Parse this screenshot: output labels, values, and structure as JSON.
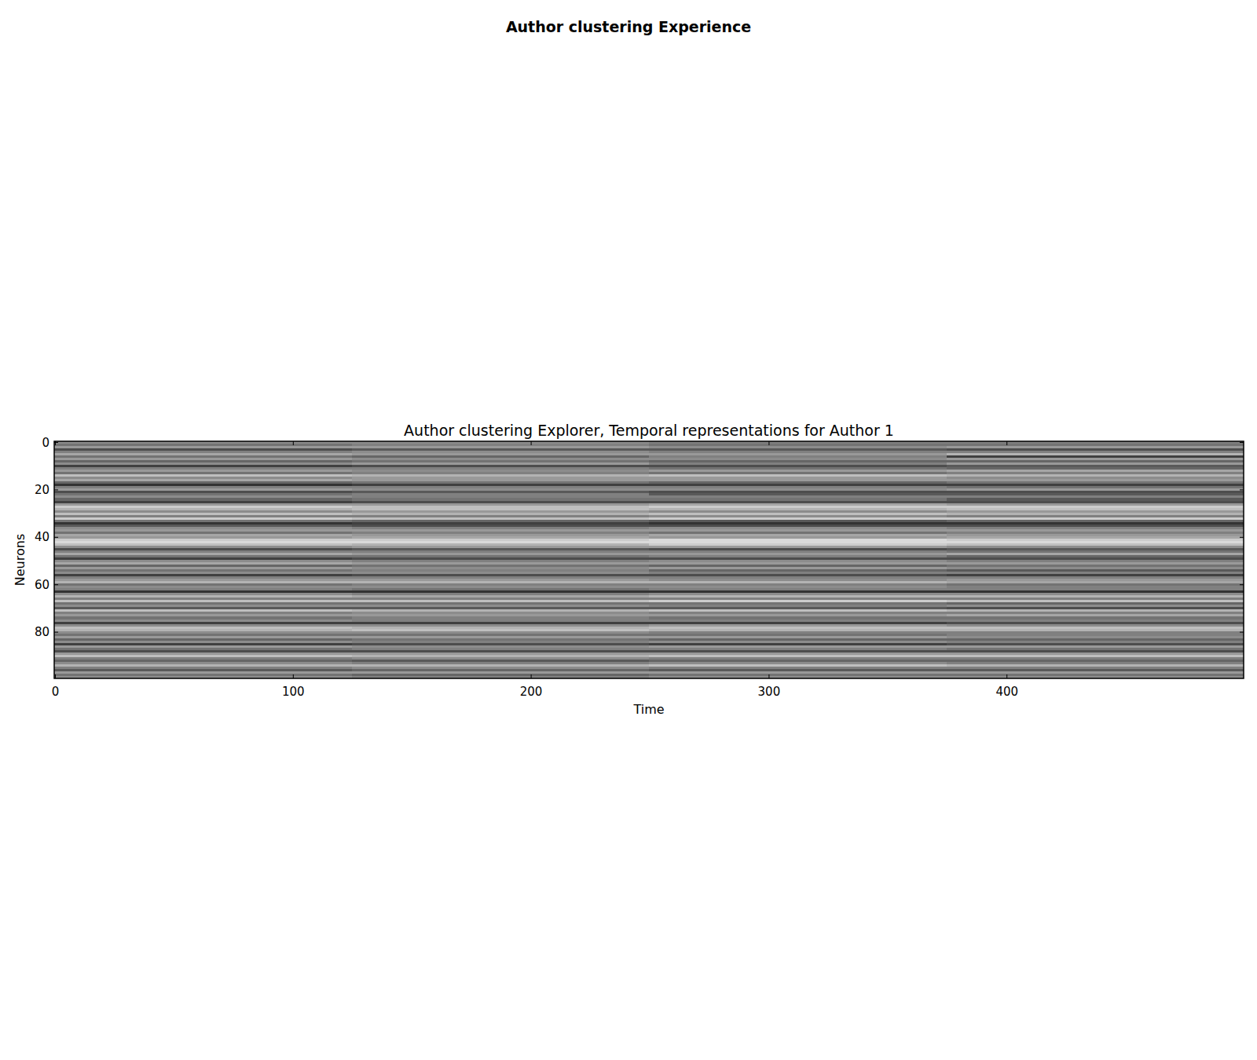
{
  "chart_data": {
    "type": "heatmap",
    "title": "Author clustering Experience",
    "subtitle": "Author clustering Explorer, Temporal representations for Author 1",
    "x_label": "Time",
    "y_label": "Neurons",
    "xlim": [
      -0.5,
      499.5
    ],
    "ylim": [
      99.5,
      -0.5
    ],
    "xticks": [
      0,
      100,
      200,
      300,
      400
    ],
    "yticks": [
      0,
      20,
      40,
      60,
      80
    ],
    "color": "gray",
    "color_range": [
      0,
      1
    ],
    "x_bins": [
      -0.5,
      124.5,
      249.5,
      374.5,
      499.5
    ],
    "y_bins": [
      -0.5,
      0.5,
      1.5,
      2.5,
      3.5,
      4.5,
      5.5,
      6.5,
      7.5,
      8.5,
      9.5,
      10.5,
      11.5,
      12.5,
      13.5,
      14.5,
      15.5,
      16.5,
      17.5,
      18.5,
      19.5,
      20.5,
      21.5,
      22.5,
      23.5,
      24.5,
      25.5,
      26.5,
      27.5,
      28.5,
      29.5,
      30.5,
      31.5,
      32.5,
      33.5,
      34.5,
      35.5,
      36.5,
      37.5,
      38.5,
      39.5,
      40.5,
      41.5,
      42.5,
      43.5,
      44.5,
      45.5,
      46.5,
      47.5,
      48.5,
      49.5,
      50.5,
      51.5,
      52.5,
      53.5,
      54.5,
      55.5,
      56.5,
      57.5,
      58.5,
      59.5,
      60.5,
      61.5,
      62.5,
      63.5,
      64.5,
      65.5,
      66.5,
      67.5,
      68.5,
      69.5,
      70.5,
      71.5,
      72.5,
      73.5,
      74.5,
      75.5,
      76.5,
      77.5,
      78.5,
      79.5,
      80.5,
      81.5,
      82.5,
      83.5,
      84.5,
      85.5,
      86.5,
      87.5,
      88.5,
      89.5,
      90.5,
      91.5,
      92.5,
      93.5,
      94.5,
      95.5,
      96.5,
      97.5,
      98.5,
      99.5
    ],
    "cells": [
      [
        0.55,
        0.55,
        0.5,
        0.5
      ],
      [
        0.45,
        0.5,
        0.45,
        0.45
      ],
      [
        0.6,
        0.6,
        0.55,
        0.6
      ],
      [
        0.3,
        0.35,
        0.35,
        0.3
      ],
      [
        0.5,
        0.55,
        0.5,
        0.5
      ],
      [
        0.65,
        0.6,
        0.6,
        0.7
      ],
      [
        0.45,
        0.4,
        0.5,
        0.25
      ],
      [
        0.6,
        0.55,
        0.55,
        0.6
      ],
      [
        0.4,
        0.45,
        0.4,
        0.4
      ],
      [
        0.55,
        0.6,
        0.5,
        0.6
      ],
      [
        0.25,
        0.3,
        0.3,
        0.35
      ],
      [
        0.5,
        0.5,
        0.45,
        0.4
      ],
      [
        0.6,
        0.55,
        0.6,
        0.65
      ],
      [
        0.45,
        0.5,
        0.45,
        0.5
      ],
      [
        0.75,
        0.7,
        0.75,
        0.7
      ],
      [
        0.55,
        0.6,
        0.6,
        0.55
      ],
      [
        0.65,
        0.6,
        0.6,
        0.6
      ],
      [
        0.4,
        0.45,
        0.4,
        0.45
      ],
      [
        0.2,
        0.25,
        0.25,
        0.25
      ],
      [
        0.5,
        0.5,
        0.5,
        0.45
      ],
      [
        0.6,
        0.55,
        0.55,
        0.6
      ],
      [
        0.3,
        0.35,
        0.3,
        0.3
      ],
      [
        0.45,
        0.5,
        0.35,
        0.35
      ],
      [
        0.55,
        0.5,
        0.5,
        0.5
      ],
      [
        0.4,
        0.45,
        0.45,
        0.35
      ],
      [
        0.25,
        0.3,
        0.3,
        0.3
      ],
      [
        0.6,
        0.6,
        0.65,
        0.6
      ],
      [
        0.8,
        0.75,
        0.8,
        0.8
      ],
      [
        0.7,
        0.75,
        0.7,
        0.75
      ],
      [
        0.55,
        0.6,
        0.55,
        0.6
      ],
      [
        0.75,
        0.7,
        0.75,
        0.7
      ],
      [
        0.5,
        0.5,
        0.55,
        0.5
      ],
      [
        0.8,
        0.75,
        0.8,
        0.8
      ],
      [
        0.45,
        0.4,
        0.35,
        0.4
      ],
      [
        0.2,
        0.25,
        0.2,
        0.2
      ],
      [
        0.35,
        0.3,
        0.3,
        0.3
      ],
      [
        0.55,
        0.5,
        0.55,
        0.5
      ],
      [
        0.6,
        0.6,
        0.6,
        0.6
      ],
      [
        0.45,
        0.5,
        0.45,
        0.5
      ],
      [
        0.65,
        0.6,
        0.65,
        0.6
      ],
      [
        0.6,
        0.65,
        0.6,
        0.65
      ],
      [
        0.8,
        0.8,
        0.85,
        0.8
      ],
      [
        0.85,
        0.85,
        0.85,
        0.85
      ],
      [
        0.75,
        0.7,
        0.8,
        0.75
      ],
      [
        0.55,
        0.6,
        0.6,
        0.55
      ],
      [
        0.3,
        0.35,
        0.3,
        0.35
      ],
      [
        0.5,
        0.5,
        0.5,
        0.45
      ],
      [
        0.65,
        0.6,
        0.6,
        0.65
      ],
      [
        0.45,
        0.45,
        0.5,
        0.4
      ],
      [
        0.25,
        0.3,
        0.3,
        0.3
      ],
      [
        0.55,
        0.5,
        0.55,
        0.5
      ],
      [
        0.65,
        0.6,
        0.6,
        0.6
      ],
      [
        0.4,
        0.45,
        0.4,
        0.45
      ],
      [
        0.6,
        0.55,
        0.6,
        0.55
      ],
      [
        0.45,
        0.5,
        0.4,
        0.35
      ],
      [
        0.55,
        0.55,
        0.5,
        0.5
      ],
      [
        0.25,
        0.3,
        0.3,
        0.25
      ],
      [
        0.5,
        0.5,
        0.5,
        0.5
      ],
      [
        0.6,
        0.6,
        0.55,
        0.6
      ],
      [
        0.7,
        0.7,
        0.7,
        0.65
      ],
      [
        0.45,
        0.5,
        0.5,
        0.45
      ],
      [
        0.55,
        0.55,
        0.55,
        0.5
      ],
      [
        0.5,
        0.45,
        0.5,
        0.5
      ],
      [
        0.2,
        0.2,
        0.2,
        0.2
      ],
      [
        0.55,
        0.5,
        0.55,
        0.55
      ],
      [
        0.7,
        0.65,
        0.7,
        0.7
      ],
      [
        0.5,
        0.5,
        0.5,
        0.5
      ],
      [
        0.75,
        0.75,
        0.8,
        0.75
      ],
      [
        0.45,
        0.45,
        0.45,
        0.4
      ],
      [
        0.55,
        0.55,
        0.5,
        0.55
      ],
      [
        0.35,
        0.35,
        0.35,
        0.3
      ],
      [
        0.75,
        0.7,
        0.75,
        0.7
      ],
      [
        0.5,
        0.55,
        0.5,
        0.5
      ],
      [
        0.6,
        0.6,
        0.6,
        0.65
      ],
      [
        0.45,
        0.5,
        0.45,
        0.45
      ],
      [
        0.55,
        0.5,
        0.5,
        0.5
      ],
      [
        0.25,
        0.25,
        0.25,
        0.3
      ],
      [
        0.55,
        0.55,
        0.6,
        0.55
      ],
      [
        0.75,
        0.7,
        0.75,
        0.75
      ],
      [
        0.7,
        0.75,
        0.7,
        0.7
      ],
      [
        0.55,
        0.55,
        0.5,
        0.5
      ],
      [
        0.45,
        0.45,
        0.45,
        0.5
      ],
      [
        0.6,
        0.6,
        0.6,
        0.55
      ],
      [
        0.4,
        0.45,
        0.4,
        0.4
      ],
      [
        0.55,
        0.5,
        0.55,
        0.5
      ],
      [
        0.25,
        0.3,
        0.25,
        0.3
      ],
      [
        0.6,
        0.55,
        0.6,
        0.6
      ],
      [
        0.45,
        0.5,
        0.5,
        0.45
      ],
      [
        0.3,
        0.3,
        0.3,
        0.3
      ],
      [
        0.6,
        0.6,
        0.6,
        0.6
      ],
      [
        0.75,
        0.7,
        0.75,
        0.75
      ],
      [
        0.5,
        0.55,
        0.5,
        0.5
      ],
      [
        0.4,
        0.35,
        0.4,
        0.4
      ],
      [
        0.55,
        0.5,
        0.55,
        0.5
      ],
      [
        0.7,
        0.7,
        0.75,
        0.7
      ],
      [
        0.5,
        0.55,
        0.5,
        0.5
      ],
      [
        0.35,
        0.4,
        0.35,
        0.35
      ],
      [
        0.6,
        0.6,
        0.6,
        0.6
      ],
      [
        0.45,
        0.4,
        0.45,
        0.45
      ],
      [
        0.55,
        0.5,
        0.55,
        0.55
      ]
    ]
  }
}
